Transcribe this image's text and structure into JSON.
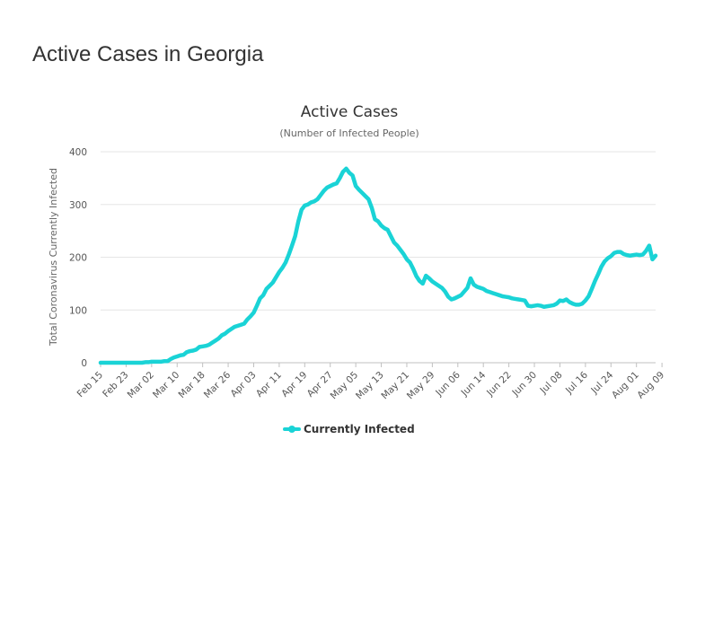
{
  "page": {
    "heading": "Active Cases in Georgia"
  },
  "chart_data": {
    "type": "line",
    "title": "Active Cases",
    "subtitle": "(Number of Infected People)",
    "ylabel": "Total Coronavirus Currently Infected",
    "xlabel": "",
    "ylim": [
      0,
      400
    ],
    "yticks": [
      0,
      100,
      200,
      300,
      400
    ],
    "grid": true,
    "legend_position": "bottom-center",
    "x_start": "Feb 15",
    "x_end": "Aug 13",
    "x_tick_labels": [
      "Feb 15",
      "Feb 23",
      "Mar 02",
      "Mar 10",
      "Mar 18",
      "Mar 26",
      "Apr 03",
      "Apr 11",
      "Apr 19",
      "Apr 27",
      "May 05",
      "May 13",
      "May 21",
      "May 29",
      "Jun 06",
      "Jun 14",
      "Jun 22",
      "Jun 30",
      "Jul 08",
      "Jul 16",
      "Jul 24",
      "Aug 01",
      "Aug 09"
    ],
    "series": [
      {
        "name": "Currently Infected",
        "color": "#1ad3d6",
        "values": [
          0,
          0,
          0,
          0,
          0,
          0,
          0,
          0,
          0,
          0,
          0,
          0,
          0,
          0,
          1,
          1,
          2,
          2,
          2,
          2,
          3,
          3,
          7,
          10,
          12,
          14,
          15,
          20,
          22,
          23,
          25,
          30,
          31,
          32,
          34,
          38,
          42,
          46,
          52,
          55,
          60,
          64,
          68,
          70,
          72,
          74,
          82,
          88,
          95,
          108,
          122,
          128,
          140,
          146,
          152,
          162,
          172,
          180,
          190,
          205,
          222,
          240,
          268,
          290,
          298,
          300,
          304,
          306,
          310,
          318,
          326,
          332,
          335,
          338,
          340,
          350,
          362,
          368,
          360,
          355,
          335,
          328,
          322,
          316,
          310,
          294,
          272,
          268,
          260,
          255,
          252,
          240,
          228,
          222,
          214,
          206,
          196,
          190,
          178,
          164,
          155,
          150,
          165,
          160,
          154,
          150,
          146,
          142,
          135,
          125,
          120,
          122,
          125,
          128,
          135,
          142,
          160,
          148,
          144,
          142,
          140,
          136,
          134,
          132,
          130,
          128,
          126,
          125,
          124,
          122,
          121,
          120,
          119,
          118,
          108,
          107,
          108,
          109,
          108,
          106,
          107,
          108,
          109,
          112,
          118,
          117,
          120,
          115,
          112,
          110,
          110,
          112,
          118,
          126,
          140,
          155,
          168,
          182,
          192,
          198,
          202,
          208,
          210,
          210,
          206,
          204,
          203,
          204,
          205,
          204,
          205,
          212,
          222,
          196,
          203
        ]
      }
    ]
  }
}
